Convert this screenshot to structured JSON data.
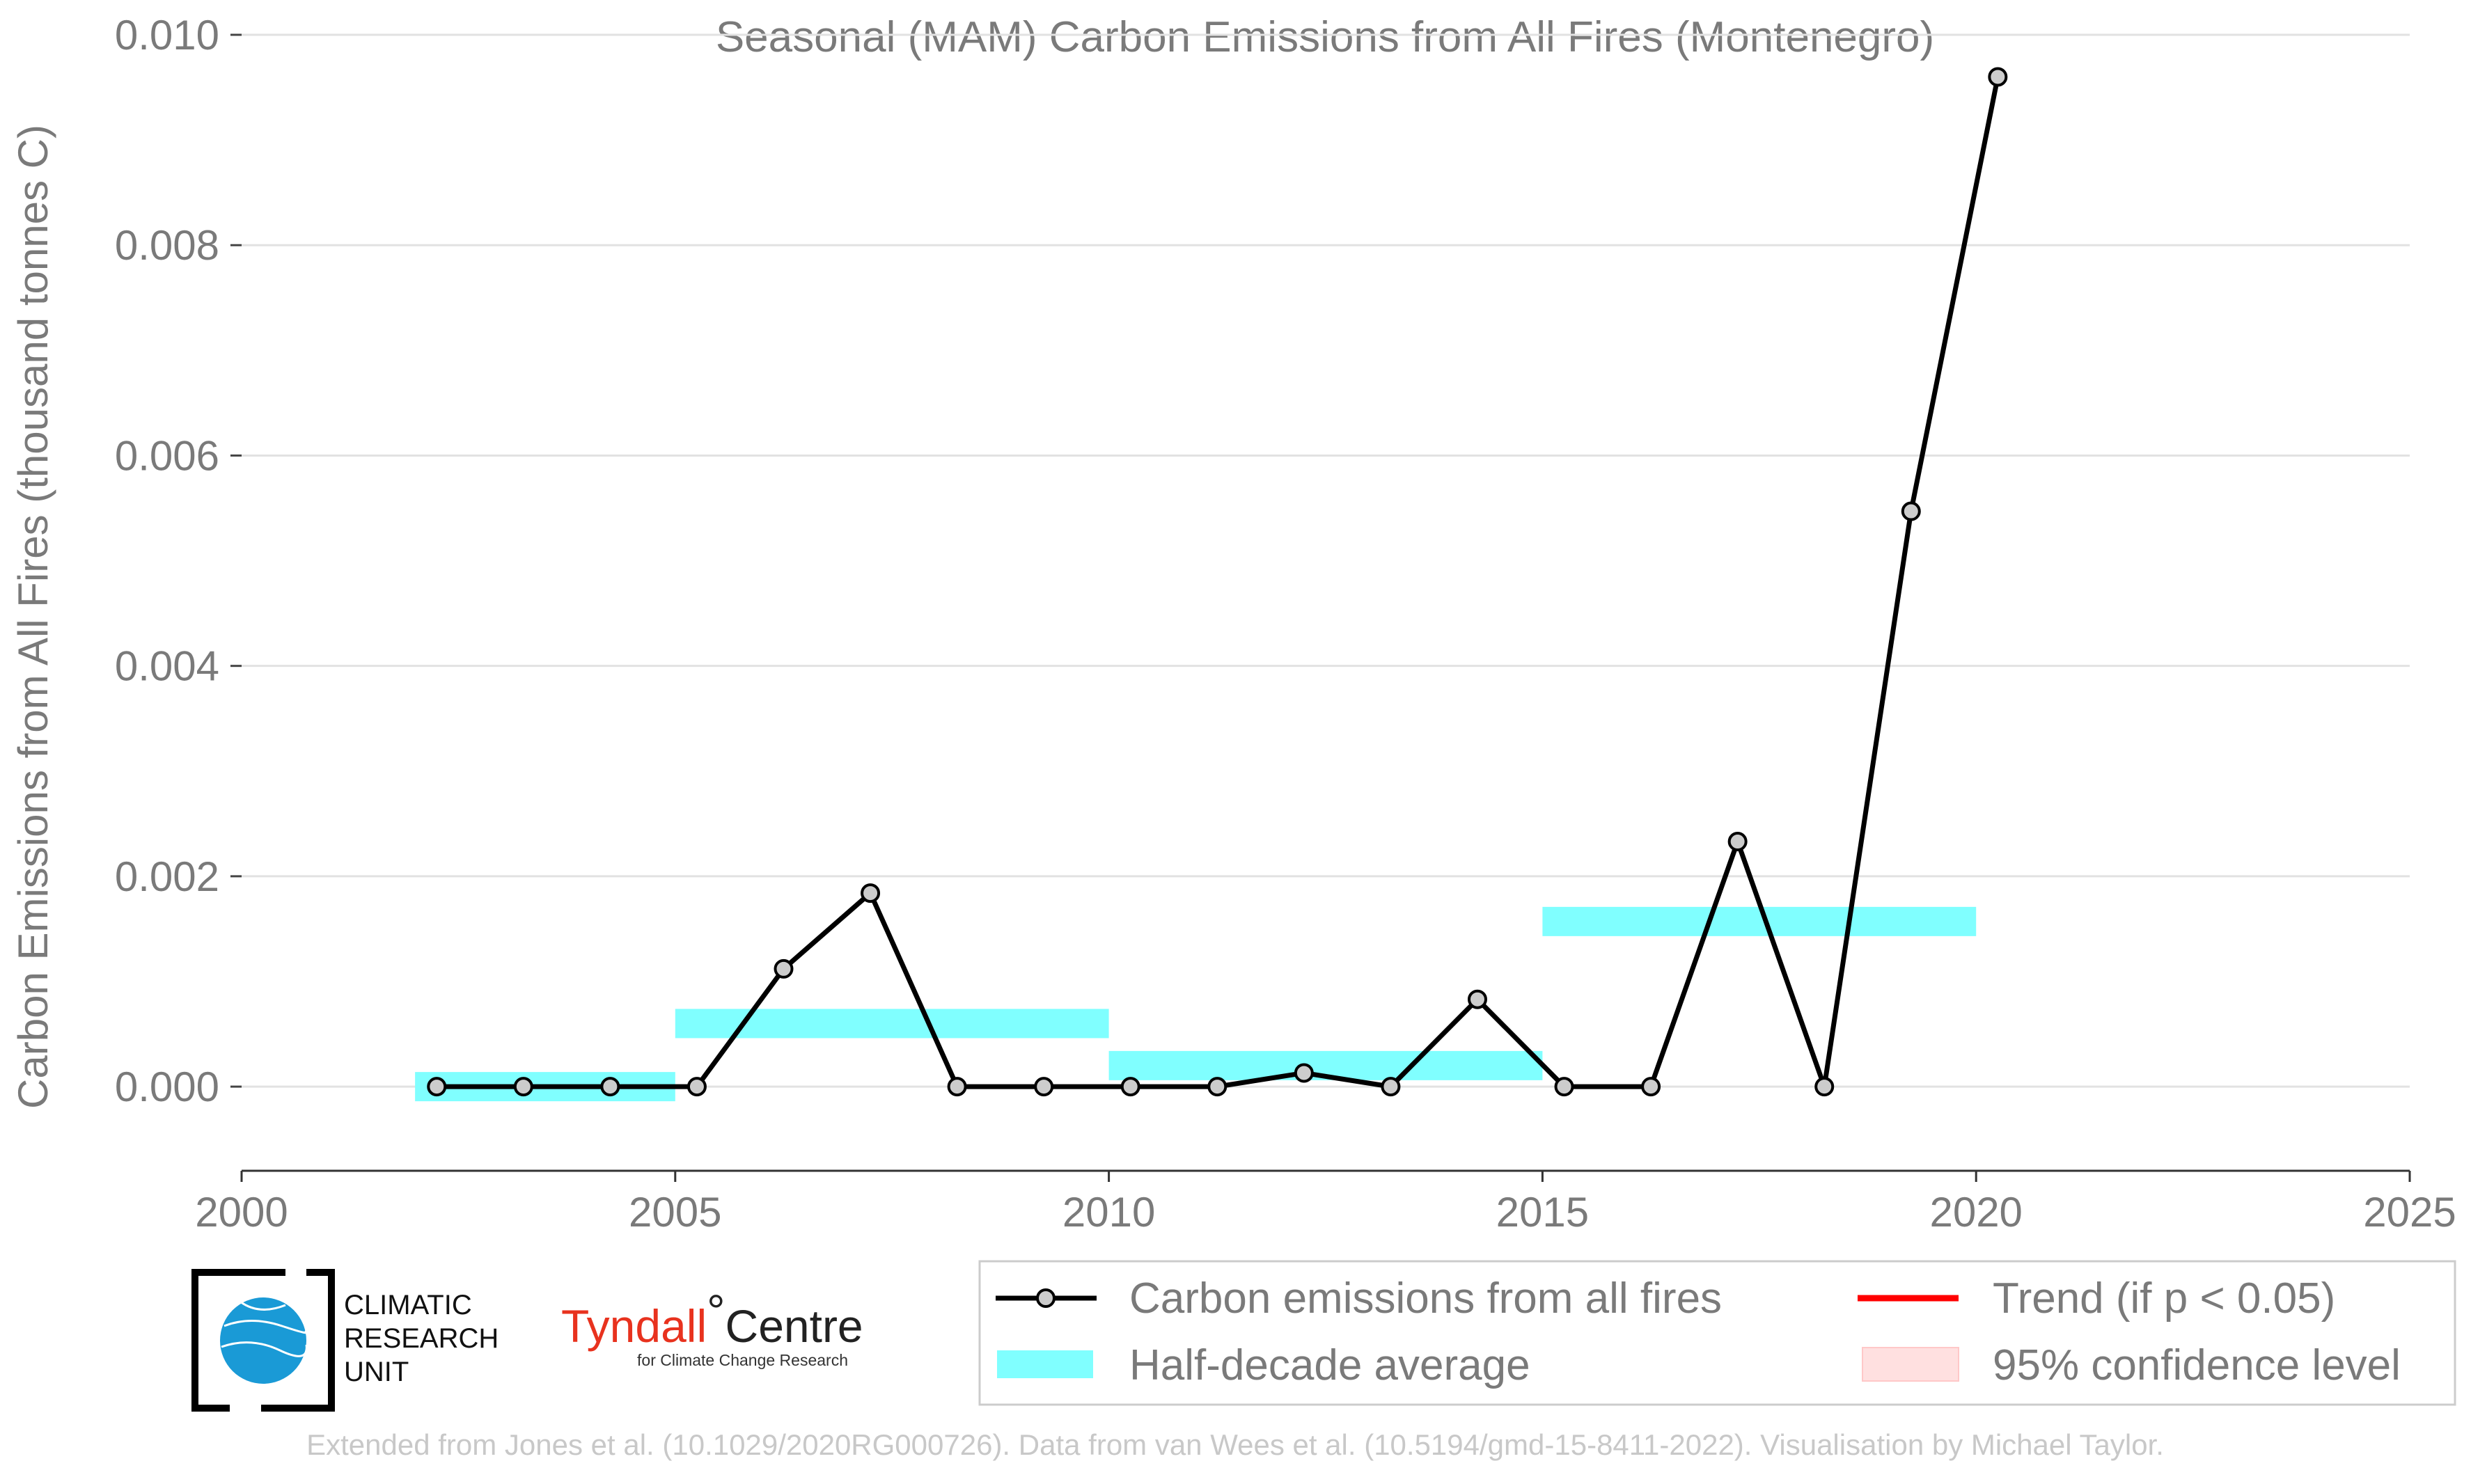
{
  "chart_data": {
    "type": "line",
    "title": "Seasonal (MAM) Carbon Emissions from All Fires (Montenegro)",
    "xlabel": "",
    "ylabel": "Carbon Emissions from All Fires (thousand tonnes C)",
    "xlim": [
      2000,
      2025
    ],
    "ylim": [
      -0.0008,
      0.01
    ],
    "xticks": [
      2000,
      2005,
      2010,
      2015,
      2020,
      2025
    ],
    "xtick_labels": [
      "2000",
      "2005",
      "2010",
      "2015",
      "2020",
      "2025"
    ],
    "yticks": [
      0.0,
      0.002,
      0.004,
      0.006,
      0.008,
      0.01
    ],
    "ytick_labels": [
      "0.000",
      "0.002",
      "0.004",
      "0.006",
      "0.008",
      "0.010"
    ],
    "grid": "horizontal",
    "series": [
      {
        "name": "Carbon emissions from all fires",
        "color": "#000000",
        "marker_fill": "#cccccc",
        "x": [
          2002.25,
          2003.25,
          2004.25,
          2005.25,
          2006.25,
          2007.25,
          2008.25,
          2009.25,
          2010.25,
          2011.25,
          2012.25,
          2013.25,
          2014.25,
          2015.25,
          2016.25,
          2017.25,
          2018.25,
          2019.25,
          2020.25
        ],
        "y": [
          0.0,
          0.0,
          0.0,
          0.0,
          0.00112,
          0.00184,
          0.0,
          0.0,
          0.0,
          0.0,
          0.00013,
          0.0,
          0.00083,
          0.0,
          0.0,
          0.00233,
          0.0,
          0.00547,
          0.0096
        ]
      }
    ],
    "half_decade_average": {
      "name": "Half-decade average",
      "color": "#80ffff",
      "segments": [
        {
          "x_start": 2002,
          "x_end": 2005,
          "y": 0.0
        },
        {
          "x_start": 2005,
          "x_end": 2010,
          "y": 0.0006
        },
        {
          "x_start": 2010,
          "x_end": 2015,
          "y": 0.0002
        },
        {
          "x_start": 2015,
          "x_end": 2020,
          "y": 0.00157
        }
      ]
    },
    "legend": {
      "placement": "bottom-right",
      "entries": [
        {
          "label": "Carbon emissions from all fires",
          "kind": "line-marker",
          "color": "#000000"
        },
        {
          "label": "Trend (if p < 0.05)",
          "kind": "line",
          "color": "#ff0000"
        },
        {
          "label": "Half-decade average",
          "kind": "band",
          "color": "#80ffff"
        },
        {
          "label": "95% confidence level",
          "kind": "patch",
          "color": "#ffdddd"
        }
      ]
    }
  },
  "logos": {
    "cru": {
      "line1": "CLIMATIC",
      "line2": "RESEARCH",
      "line3": "UNIT"
    },
    "tyndall": {
      "word1": "Tyndall",
      "degree": "°",
      "word2": "Centre",
      "sub": "for Climate Change Research"
    }
  },
  "credit": "Extended from Jones et al. (10.1029/2020RG000726). Data from van Wees et al. (10.5194/gmd-15-8411-2022). Visualisation by Michael Taylor."
}
